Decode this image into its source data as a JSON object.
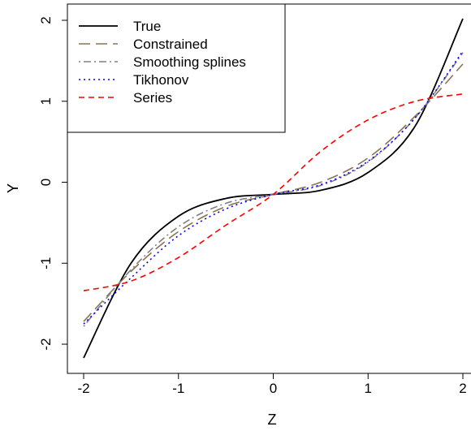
{
  "chart_data": {
    "type": "line",
    "title": "",
    "xlabel": "Z",
    "ylabel": "Y",
    "xlim": [
      -2.0,
      2.0
    ],
    "ylim": [
      -2.18,
      2.02
    ],
    "x_ticks": [
      "-2",
      "-1",
      "0",
      "1",
      "2"
    ],
    "y_ticks": [
      "-2",
      "-1",
      "0",
      "1",
      "2"
    ],
    "legend_position": "top-left",
    "grid": false,
    "x": [
      -2.0,
      -1.5,
      -1.0,
      -0.5,
      0.0,
      0.5,
      1.0,
      1.5,
      2.0
    ],
    "series": [
      {
        "name": "True",
        "color": "#000000",
        "dash": "solid",
        "values": [
          -2.17,
          -1.0,
          -0.42,
          -0.2,
          -0.15,
          -0.1,
          0.12,
          0.7,
          2.02
        ]
      },
      {
        "name": "Constrained",
        "color": "#8b7355",
        "dash": "longdash",
        "values": [
          -1.72,
          -1.1,
          -0.61,
          -0.3,
          -0.15,
          0.0,
          0.3,
          0.82,
          1.46
        ]
      },
      {
        "name": "Smoothing splines",
        "color": "#808080",
        "dash": "dotdash",
        "values": [
          -1.78,
          -1.08,
          -0.55,
          -0.26,
          -0.15,
          -0.04,
          0.25,
          0.8,
          1.6
        ]
      },
      {
        "name": "Tikhonov",
        "color": "#0000ff",
        "dash": "dotted",
        "values": [
          -1.75,
          -1.18,
          -0.66,
          -0.33,
          -0.15,
          -0.03,
          0.26,
          0.8,
          1.62
        ]
      },
      {
        "name": "Series",
        "color": "#ff0000",
        "dash": "dashed",
        "values": [
          -1.34,
          -1.22,
          -0.93,
          -0.53,
          -0.15,
          0.38,
          0.77,
          1.0,
          1.09
        ]
      }
    ]
  }
}
